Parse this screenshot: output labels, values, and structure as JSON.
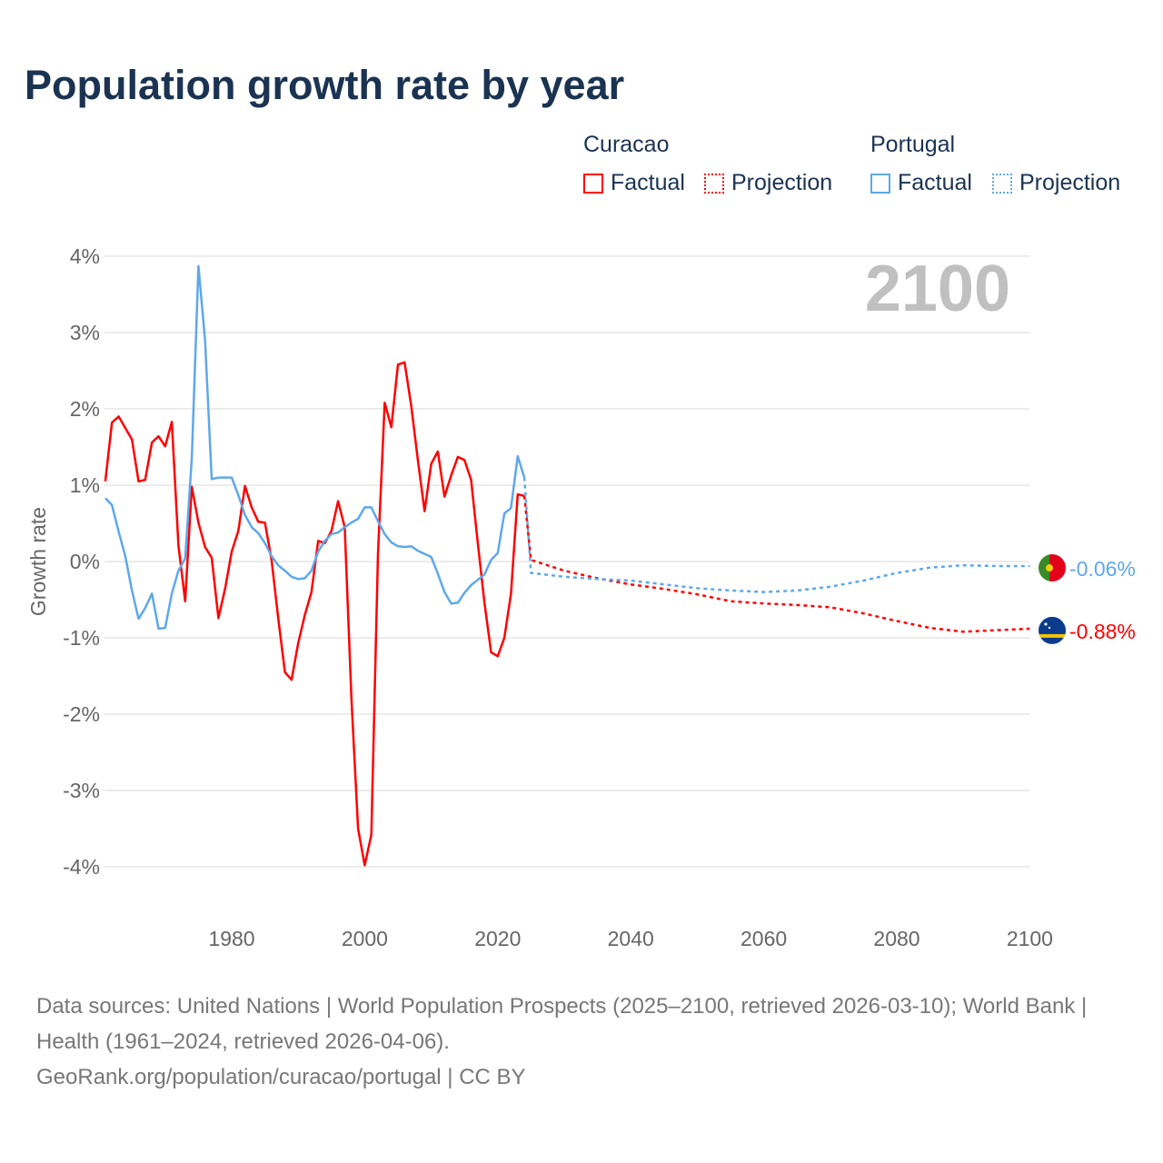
{
  "title": "Population growth rate by year",
  "legend": {
    "groups": [
      {
        "name": "Curacao",
        "color": "#ff0000",
        "factual": "Factual",
        "projection": "Projection"
      },
      {
        "name": "Portugal",
        "color": "#5ea8ea",
        "factual": "Factual",
        "projection": "Projection"
      }
    ]
  },
  "year_label": "2100",
  "footer": {
    "sources": "Data sources: United Nations | World Population Prospects (2025–2100, retrieved 2026-03-10); World Bank | Health (1961–2024, retrieved 2026-04-06).",
    "credit": "GeoRank.org/population/curacao/portugal | CC BY"
  },
  "chart_data": {
    "type": "line",
    "title": "Population growth rate by year",
    "xlabel": "",
    "ylabel": "Growth rate",
    "xlim": [
      1961,
      2100
    ],
    "ylim": [
      -4,
      4
    ],
    "xticks": [
      1980,
      2000,
      2020,
      2040,
      2060,
      2080,
      2100
    ],
    "yticks": [
      4,
      3,
      2,
      1,
      0,
      -1,
      -2,
      -3,
      -4
    ],
    "ytick_labels": [
      "4%",
      "3%",
      "2%",
      "1%",
      "0%",
      "-1%",
      "-2%",
      "-3%",
      "-4%"
    ],
    "grid": true,
    "series": [
      {
        "name": "Curacao",
        "kind": "factual",
        "color": "#ff0000",
        "start_year": 1961,
        "values": [
          1.05,
          1.82,
          1.9,
          1.75,
          1.6,
          1.05,
          1.07,
          1.56,
          1.64,
          1.51,
          1.83,
          0.21,
          -0.52,
          0.98,
          0.51,
          0.19,
          0.05,
          -0.74,
          -0.36,
          0.13,
          0.4,
          0.99,
          0.71,
          0.52,
          0.51,
          0.02,
          -0.74,
          -1.45,
          -1.55,
          -1.07,
          -0.7,
          -0.4,
          0.27,
          0.24,
          0.4,
          0.79,
          0.45,
          -1.8,
          -3.5,
          -3.98,
          -3.58,
          0.1,
          2.08,
          1.76,
          2.58,
          2.61,
          2.04,
          1.32,
          0.66,
          1.28,
          1.44,
          0.85,
          1.13,
          1.37,
          1.33,
          1.07,
          0.25,
          -0.54,
          -1.19,
          -1.24,
          -1.0,
          -0.42,
          0.88,
          0.86
        ]
      },
      {
        "name": "Curacao",
        "kind": "projection",
        "color": "#ff0000",
        "years": [
          2024,
          2025,
          2030,
          2035,
          2040,
          2045,
          2050,
          2055,
          2060,
          2065,
          2070,
          2075,
          2080,
          2085,
          2090,
          2095,
          2100
        ],
        "values": [
          0.86,
          0.02,
          -0.12,
          -0.22,
          -0.3,
          -0.36,
          -0.43,
          -0.52,
          -0.55,
          -0.57,
          -0.6,
          -0.68,
          -0.78,
          -0.87,
          -0.92,
          -0.9,
          -0.88
        ]
      },
      {
        "name": "Portugal",
        "kind": "factual",
        "color": "#5ea8ea",
        "start_year": 1961,
        "values": [
          0.83,
          0.74,
          0.39,
          0.07,
          -0.38,
          -0.75,
          -0.61,
          -0.42,
          -0.88,
          -0.87,
          -0.42,
          -0.12,
          0.04,
          1.35,
          3.87,
          2.9,
          1.08,
          1.1,
          1.1,
          1.1,
          0.87,
          0.61,
          0.45,
          0.37,
          0.24,
          0.07,
          -0.05,
          -0.12,
          -0.2,
          -0.23,
          -0.22,
          -0.12,
          0.13,
          0.27,
          0.36,
          0.38,
          0.45,
          0.51,
          0.56,
          0.71,
          0.71,
          0.53,
          0.36,
          0.25,
          0.2,
          0.19,
          0.2,
          0.14,
          0.1,
          0.06,
          -0.16,
          -0.4,
          -0.55,
          -0.54,
          -0.41,
          -0.31,
          -0.24,
          -0.17,
          0.02,
          0.11,
          0.63,
          0.7,
          1.38,
          1.1
        ]
      },
      {
        "name": "Portugal",
        "kind": "projection",
        "color": "#5ea8ea",
        "years": [
          2024,
          2025,
          2030,
          2035,
          2040,
          2045,
          2050,
          2055,
          2060,
          2065,
          2070,
          2075,
          2080,
          2085,
          2090,
          2095,
          2100
        ],
        "values": [
          1.1,
          -0.15,
          -0.2,
          -0.23,
          -0.25,
          -0.3,
          -0.35,
          -0.38,
          -0.4,
          -0.38,
          -0.33,
          -0.25,
          -0.15,
          -0.08,
          -0.05,
          -0.06,
          -0.06
        ]
      }
    ],
    "end_labels": [
      {
        "name": "Portugal",
        "text": "-0.06%",
        "value": -0.06,
        "color": "#5ea8ea"
      },
      {
        "name": "Curacao",
        "text": "-0.88%",
        "value": -0.88,
        "color": "#ff0000"
      }
    ]
  }
}
